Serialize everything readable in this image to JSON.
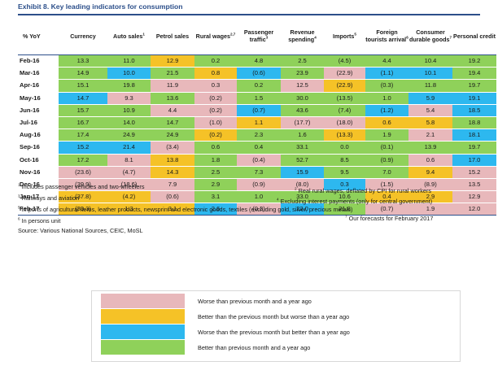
{
  "title": "Exhibit 8.  Key leading indicators for consumption",
  "colors": {
    "green": "#8fd15a",
    "yellow": "#f5c227",
    "blue": "#2db8ef",
    "pink": "#e8b8bb",
    "header_blue": "#2c4f8a"
  },
  "columns": [
    {
      "label": "% YoY",
      "sup": ""
    },
    {
      "label": "Currency",
      "sup": ""
    },
    {
      "label": "Auto sales",
      "sup": "1"
    },
    {
      "label": "Petrol sales",
      "sup": ""
    },
    {
      "label": "Rural wages",
      "sup": "2,7"
    },
    {
      "label": "Passenger traffic",
      "sup": "3"
    },
    {
      "label": "Revenue spending",
      "sup": "4"
    },
    {
      "label": "Imports",
      "sup": "5"
    },
    {
      "label": "Foreign tourists arrival",
      "sup": "6"
    },
    {
      "label": "Consumer durable goods",
      "sup": "7"
    },
    {
      "label": "Personal credit",
      "sup": ""
    }
  ],
  "rows": [
    {
      "label": "Feb-16",
      "cells": [
        {
          "v": "13.3",
          "c": "g"
        },
        {
          "v": "11.0",
          "c": "g"
        },
        {
          "v": "12.9",
          "c": "y"
        },
        {
          "v": "0.2",
          "c": "g"
        },
        {
          "v": "4.8",
          "c": "g"
        },
        {
          "v": "2.5",
          "c": "g"
        },
        {
          "v": "(4.5)",
          "c": "g"
        },
        {
          "v": "4.4",
          "c": "g"
        },
        {
          "v": "10.4",
          "c": "g"
        },
        {
          "v": "19.2",
          "c": "g"
        }
      ]
    },
    {
      "label": "Mar-16",
      "cells": [
        {
          "v": "14.9",
          "c": "g"
        },
        {
          "v": "10.0",
          "c": "b"
        },
        {
          "v": "21.5",
          "c": "g"
        },
        {
          "v": "0.8",
          "c": "y"
        },
        {
          "v": "(0.6)",
          "c": "b"
        },
        {
          "v": "23.9",
          "c": "g"
        },
        {
          "v": "(22.9)",
          "c": "p"
        },
        {
          "v": "(1.1)",
          "c": "b"
        },
        {
          "v": "10.1",
          "c": "b"
        },
        {
          "v": "19.4",
          "c": "g"
        }
      ]
    },
    {
      "label": "Apr-16",
      "cells": [
        {
          "v": "15.1",
          "c": "g"
        },
        {
          "v": "19.8",
          "c": "g"
        },
        {
          "v": "11.9",
          "c": "p"
        },
        {
          "v": "0.3",
          "c": "p"
        },
        {
          "v": "0.2",
          "c": "g"
        },
        {
          "v": "12.5",
          "c": "p"
        },
        {
          "v": "(22.9)",
          "c": "y"
        },
        {
          "v": "(0.3)",
          "c": "g"
        },
        {
          "v": "11.8",
          "c": "g"
        },
        {
          "v": "19.7",
          "c": "g"
        }
      ]
    },
    {
      "label": "May-16",
      "cells": [
        {
          "v": "14.7",
          "c": "b"
        },
        {
          "v": "9.3",
          "c": "p"
        },
        {
          "v": "13.6",
          "c": "g"
        },
        {
          "v": "(0.2)",
          "c": "p"
        },
        {
          "v": "1.5",
          "c": "g"
        },
        {
          "v": "30.0",
          "c": "g"
        },
        {
          "v": "(13.5)",
          "c": "g"
        },
        {
          "v": "1.0",
          "c": "g"
        },
        {
          "v": "5.9",
          "c": "b"
        },
        {
          "v": "19.1",
          "c": "b"
        }
      ]
    },
    {
      "label": "Jun-16",
      "cells": [
        {
          "v": "15.7",
          "c": "g"
        },
        {
          "v": "10.9",
          "c": "g"
        },
        {
          "v": "4.4",
          "c": "p"
        },
        {
          "v": "(0.2)",
          "c": "p"
        },
        {
          "v": "(0.7)",
          "c": "b"
        },
        {
          "v": "43.6",
          "c": "g"
        },
        {
          "v": "(7.4)",
          "c": "g"
        },
        {
          "v": "(1.2)",
          "c": "b"
        },
        {
          "v": "5.4",
          "c": "p"
        },
        {
          "v": "18.5",
          "c": "b"
        }
      ]
    },
    {
      "label": "Jul-16",
      "cells": [
        {
          "v": "16.7",
          "c": "g"
        },
        {
          "v": "14.0",
          "c": "g"
        },
        {
          "v": "14.7",
          "c": "g"
        },
        {
          "v": "(1.0)",
          "c": "p"
        },
        {
          "v": "1.1",
          "c": "y"
        },
        {
          "v": "(17.7)",
          "c": "p"
        },
        {
          "v": "(18.0)",
          "c": "p"
        },
        {
          "v": "0.6",
          "c": "y"
        },
        {
          "v": "5.8",
          "c": "y"
        },
        {
          "v": "18.8",
          "c": "g"
        }
      ]
    },
    {
      "label": "Aug-16",
      "cells": [
        {
          "v": "17.4",
          "c": "g"
        },
        {
          "v": "24.9",
          "c": "g"
        },
        {
          "v": "24.9",
          "c": "g"
        },
        {
          "v": "(0.2)",
          "c": "y"
        },
        {
          "v": "2.3",
          "c": "g"
        },
        {
          "v": "1.6",
          "c": "g"
        },
        {
          "v": "(13.3)",
          "c": "y"
        },
        {
          "v": "1.9",
          "c": "g"
        },
        {
          "v": "2.1",
          "c": "p"
        },
        {
          "v": "18.1",
          "c": "b"
        }
      ]
    },
    {
      "label": "Sep-16",
      "cells": [
        {
          "v": "15.2",
          "c": "b"
        },
        {
          "v": "21.4",
          "c": "b"
        },
        {
          "v": "(3.4)",
          "c": "p"
        },
        {
          "v": "0.6",
          "c": "g"
        },
        {
          "v": "0.4",
          "c": "g"
        },
        {
          "v": "33.1",
          "c": "g"
        },
        {
          "v": "0.0",
          "c": "g"
        },
        {
          "v": "(0.1)",
          "c": "g"
        },
        {
          "v": "13.9",
          "c": "g"
        },
        {
          "v": "19.7",
          "c": "g"
        }
      ]
    },
    {
      "label": "Oct-16",
      "cells": [
        {
          "v": "17.2",
          "c": "g"
        },
        {
          "v": "8.1",
          "c": "p"
        },
        {
          "v": "13.8",
          "c": "y"
        },
        {
          "v": "1.8",
          "c": "g"
        },
        {
          "v": "(0.4)",
          "c": "p"
        },
        {
          "v": "52.7",
          "c": "g"
        },
        {
          "v": "8.5",
          "c": "g"
        },
        {
          "v": "(0.9)",
          "c": "g"
        },
        {
          "v": "0.6",
          "c": "p"
        },
        {
          "v": "17.0",
          "c": "b"
        }
      ]
    },
    {
      "label": "Nov-16",
      "cells": [
        {
          "v": "(23.6)",
          "c": "p"
        },
        {
          "v": "(4.7)",
          "c": "p"
        },
        {
          "v": "14.3",
          "c": "y"
        },
        {
          "v": "2.5",
          "c": "g"
        },
        {
          "v": "7.3",
          "c": "g"
        },
        {
          "v": "15.9",
          "c": "b"
        },
        {
          "v": "9.5",
          "c": "g"
        },
        {
          "v": "7.0",
          "c": "g"
        },
        {
          "v": "9.4",
          "c": "y"
        },
        {
          "v": "15.2",
          "c": "p"
        }
      ]
    },
    {
      "label": "Dec-16",
      "cells": [
        {
          "v": "(39.9)",
          "c": "p"
        },
        {
          "v": "(18.6)",
          "c": "p"
        },
        {
          "v": "7.9",
          "c": "p"
        },
        {
          "v": "2.9",
          "c": "g"
        },
        {
          "v": "(0.9)",
          "c": "p"
        },
        {
          "v": "(8.0)",
          "c": "p"
        },
        {
          "v": "0.3",
          "c": "b"
        },
        {
          "v": "(1.5)",
          "c": "p"
        },
        {
          "v": "(8.9)",
          "c": "p"
        },
        {
          "v": "13.5",
          "c": "p"
        }
      ]
    },
    {
      "label": "Jan-17",
      "cells": [
        {
          "v": "(37.8)",
          "c": "y"
        },
        {
          "v": "(4.2)",
          "c": "y"
        },
        {
          "v": "(0.6)",
          "c": "p"
        },
        {
          "v": "3.1",
          "c": "g"
        },
        {
          "v": "1.0",
          "c": "g"
        },
        {
          "v": "33.0",
          "c": "g"
        },
        {
          "v": "10.6",
          "c": "g"
        },
        {
          "v": "0.4",
          "c": "y"
        },
        {
          "v": "2.9",
          "c": "y"
        },
        {
          "v": "12.9",
          "c": "p"
        }
      ]
    },
    {
      "label": "Feb-17",
      "cells": [
        {
          "v": "(30.3)",
          "c": "y"
        },
        {
          "v": "1.3",
          "c": "y"
        },
        {
          "v": "3.1",
          "c": "y"
        },
        {
          "v": "2.6",
          "c": "b"
        },
        {
          "v": "(0.3)",
          "c": "p"
        },
        {
          "v": "22.0",
          "c": "b"
        },
        {
          "v": "21.8",
          "c": "g"
        },
        {
          "v": "(0.7)",
          "c": "p"
        },
        {
          "v": "1.9",
          "c": "p"
        },
        {
          "v": "12.0",
          "c": "p"
        }
      ]
    }
  ],
  "footnotes": {
    "n1": {
      "sup": "1",
      "text": "Includes passenger vehicles and two-wheelers"
    },
    "n2": {
      "sup": "2",
      "text": "Real rural wages; deflated by CPI for rural workers"
    },
    "n3": {
      "sup": "3",
      "text": "Railways and aviation"
    },
    "n4": {
      "sup": "4",
      "text": "Excluding interest payments (only for central government)"
    },
    "n5": {
      "sup": "5",
      "text": "Imports of agricultural items, leather products, newsprint and electronic goods, textiles (excluding gold, silver, precious metals)"
    },
    "n6": {
      "sup": "6",
      "text": "In persons unit"
    },
    "n7": {
      "sup": "7",
      "text": "Our forecasts for February 2017"
    },
    "source": "Source: Various National Sources, CEIC, MoSL"
  },
  "legend": [
    {
      "color": "pink",
      "label": "Worse than previous month and a year ago"
    },
    {
      "color": "yellow",
      "label": "Better than the previous month but worse than a year ago"
    },
    {
      "color": "blue",
      "label": "Worse than the previous month but better than a year ago"
    },
    {
      "color": "green",
      "label": "Better than previous month and a year ago"
    }
  ]
}
